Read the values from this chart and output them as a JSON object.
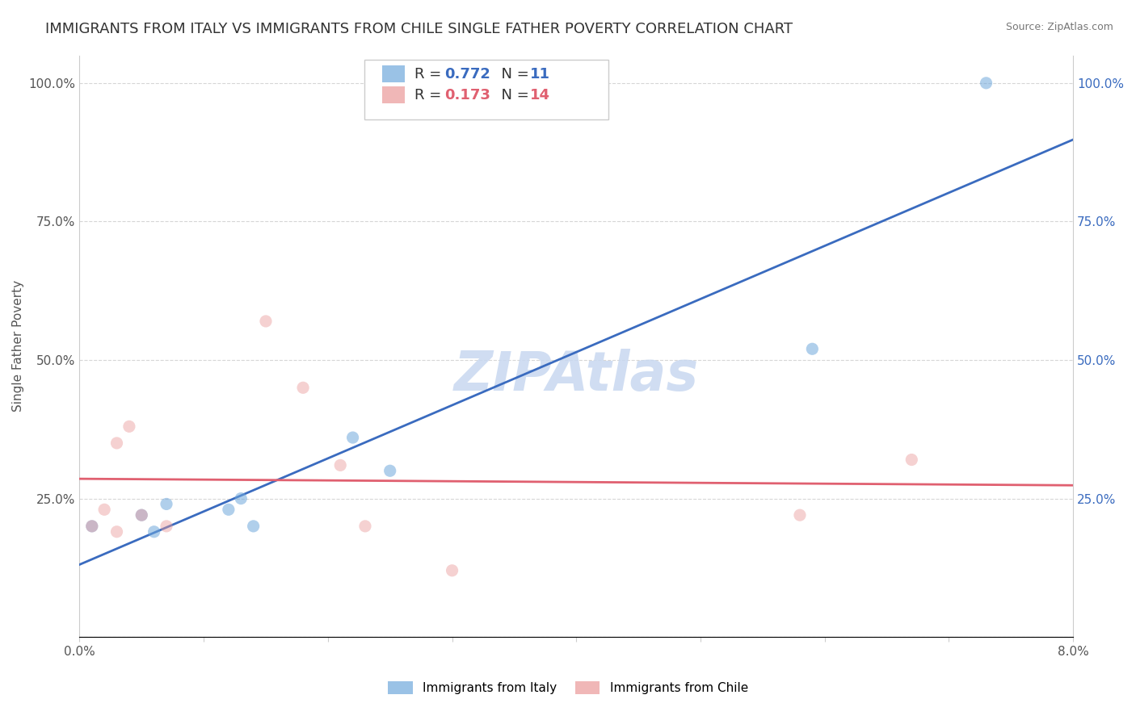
{
  "title": "IMMIGRANTS FROM ITALY VS IMMIGRANTS FROM CHILE SINGLE FATHER POVERTY CORRELATION CHART",
  "source_text": "Source: ZipAtlas.com",
  "ylabel": "Single Father Poverty",
  "xlim": [
    0.0,
    0.08
  ],
  "ylim": [
    0.0,
    1.05
  ],
  "xticks": [
    0.0,
    0.01,
    0.02,
    0.03,
    0.04,
    0.05,
    0.06,
    0.07,
    0.08
  ],
  "xticklabels": [
    "0.0%",
    "",
    "",
    "",
    "",
    "",
    "",
    "",
    "8.0%"
  ],
  "ytick_positions": [
    0.0,
    0.25,
    0.5,
    0.75,
    1.0
  ],
  "ytick_labels": [
    "",
    "25.0%",
    "50.0%",
    "75.0%",
    "100.0%"
  ],
  "italy_color": "#6fa8dc",
  "chile_color": "#ea9999",
  "italy_line_color": "#3a6bbf",
  "chile_line_color": "#e06070",
  "watermark": "ZIPAtlas",
  "background_color": "#ffffff",
  "grid_color": "#cccccc",
  "italy_x": [
    0.001,
    0.005,
    0.006,
    0.007,
    0.012,
    0.013,
    0.014,
    0.022,
    0.025,
    0.059,
    0.073
  ],
  "italy_y": [
    0.2,
    0.22,
    0.19,
    0.24,
    0.23,
    0.25,
    0.2,
    0.36,
    0.3,
    0.52,
    1.0
  ],
  "chile_x": [
    0.001,
    0.002,
    0.003,
    0.003,
    0.004,
    0.005,
    0.007,
    0.015,
    0.018,
    0.021,
    0.023,
    0.03,
    0.058,
    0.067
  ],
  "chile_y": [
    0.2,
    0.23,
    0.19,
    0.35,
    0.38,
    0.22,
    0.2,
    0.57,
    0.45,
    0.31,
    0.2,
    0.12,
    0.22,
    0.32
  ],
  "title_fontsize": 13,
  "axis_label_fontsize": 11,
  "tick_label_fontsize": 11,
  "legend_fontsize": 13,
  "watermark_fontsize": 48,
  "watermark_color": "#c8d8f0",
  "marker_size": 120,
  "italy_marker_alpha": 0.55,
  "chile_marker_alpha": 0.45,
  "line_width": 2.0
}
